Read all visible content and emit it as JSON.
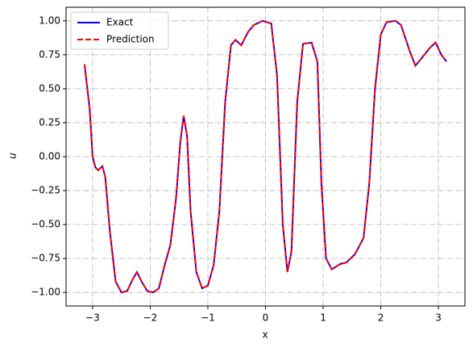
{
  "chart_data": {
    "type": "line",
    "xlabel": "x",
    "ylabel": "u",
    "x": [
      -3.14,
      -3.05,
      -3.0,
      -2.95,
      -2.9,
      -2.83,
      -2.78,
      -2.7,
      -2.6,
      -2.5,
      -2.4,
      -2.3,
      -2.23,
      -2.15,
      -2.05,
      -1.95,
      -1.85,
      -1.75,
      -1.65,
      -1.55,
      -1.48,
      -1.42,
      -1.36,
      -1.3,
      -1.2,
      -1.1,
      -1.0,
      -0.9,
      -0.8,
      -0.7,
      -0.6,
      -0.52,
      -0.42,
      -0.3,
      -0.2,
      -0.05,
      0.1,
      0.2,
      0.3,
      0.38,
      0.45,
      0.55,
      0.65,
      0.8,
      0.9,
      0.97,
      1.05,
      1.15,
      1.3,
      1.4,
      1.55,
      1.7,
      1.8,
      1.9,
      2.0,
      2.1,
      2.25,
      2.35,
      2.5,
      2.6,
      2.7,
      2.85,
      2.95,
      3.05,
      3.14
    ],
    "series": [
      {
        "name": "Exact",
        "color": "#0000ff",
        "dash": false,
        "values": [
          0.68,
          0.35,
          0.0,
          -0.08,
          -0.1,
          -0.07,
          -0.15,
          -0.55,
          -0.92,
          -1.0,
          -0.99,
          -0.9,
          -0.85,
          -0.92,
          -0.99,
          -1.0,
          -0.97,
          -0.8,
          -0.65,
          -0.3,
          0.1,
          0.3,
          0.15,
          -0.4,
          -0.85,
          -0.97,
          -0.95,
          -0.8,
          -0.4,
          0.4,
          0.82,
          0.86,
          0.82,
          0.92,
          0.97,
          1.0,
          0.98,
          0.6,
          -0.5,
          -0.85,
          -0.7,
          0.4,
          0.83,
          0.84,
          0.7,
          -0.2,
          -0.75,
          -0.83,
          -0.79,
          -0.78,
          -0.72,
          -0.6,
          -0.2,
          0.5,
          0.9,
          0.99,
          1.0,
          0.97,
          0.78,
          0.67,
          0.72,
          0.8,
          0.84,
          0.75,
          0.7
        ]
      },
      {
        "name": "Prediction",
        "color": "#ff0000",
        "dash": true,
        "values": [
          0.68,
          0.35,
          0.0,
          -0.08,
          -0.1,
          -0.07,
          -0.15,
          -0.55,
          -0.92,
          -1.0,
          -0.99,
          -0.9,
          -0.85,
          -0.92,
          -0.99,
          -1.0,
          -0.97,
          -0.8,
          -0.65,
          -0.3,
          0.1,
          0.3,
          0.15,
          -0.4,
          -0.85,
          -0.97,
          -0.95,
          -0.8,
          -0.4,
          0.4,
          0.82,
          0.86,
          0.82,
          0.92,
          0.97,
          1.0,
          0.98,
          0.6,
          -0.5,
          -0.85,
          -0.7,
          0.4,
          0.83,
          0.84,
          0.7,
          -0.2,
          -0.75,
          -0.83,
          -0.79,
          -0.78,
          -0.72,
          -0.6,
          -0.2,
          0.5,
          0.9,
          0.99,
          1.0,
          0.97,
          0.78,
          0.67,
          0.72,
          0.8,
          0.84,
          0.75,
          0.7
        ]
      }
    ],
    "xlim": [
      -3.46,
      3.46
    ],
    "xticks": [
      {
        "value": -3,
        "label": "−3"
      },
      {
        "value": -2,
        "label": "−2"
      },
      {
        "value": -1,
        "label": "−1"
      },
      0,
      1,
      2,
      3
    ],
    "ylim": [
      -1.1,
      1.1
    ],
    "yticks": [
      {
        "value": -1,
        "label": "−1.00"
      },
      {
        "value": -0.75,
        "label": "−0.75"
      },
      {
        "value": -0.5,
        "label": "−0.50"
      },
      {
        "value": -0.25,
        "label": "−0.25"
      },
      {
        "value": 0,
        "label": "0.00"
      },
      {
        "value": 0.25,
        "label": "0.25"
      },
      {
        "value": 0.5,
        "label": "0.50"
      },
      {
        "value": 0.75,
        "label": "0.75"
      },
      {
        "value": 1,
        "label": "1.00"
      }
    ],
    "grid": true,
    "legend": "upper-left"
  }
}
